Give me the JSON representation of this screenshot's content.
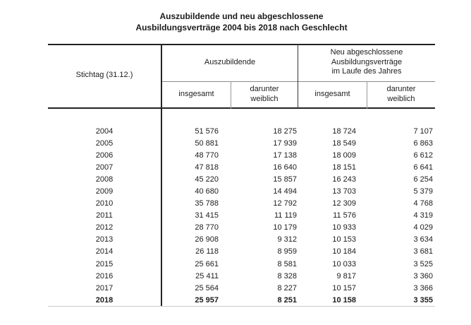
{
  "title": {
    "line1": "Auszubildende und neu abgeschlossene",
    "line2": "Ausbildungsverträge 2004 bis 2018 nach Geschlecht"
  },
  "table": {
    "corner_header": "Stichtag (31.12.)",
    "groups": [
      {
        "label": "Auszubildende",
        "columns": [
          "insgesamt",
          "darunter\nweiblich"
        ]
      },
      {
        "label": "Neu abgeschlossene\nAusbildungsverträge\nim Laufe des Jahres",
        "columns": [
          "insgesamt",
          "darunter\nweiblich"
        ]
      }
    ],
    "rows": [
      {
        "year": "2004",
        "values": [
          "51 576",
          "18 275",
          "18 724",
          "7 107"
        ],
        "bold": false
      },
      {
        "year": "2005",
        "values": [
          "50 881",
          "17 939",
          "18 549",
          "6 863"
        ],
        "bold": false
      },
      {
        "year": "2006",
        "values": [
          "48 770",
          "17 138",
          "18 009",
          "6 612"
        ],
        "bold": false
      },
      {
        "year": "2007",
        "values": [
          "47 818",
          "16 640",
          "18 151",
          "6 641"
        ],
        "bold": false
      },
      {
        "year": "2008",
        "values": [
          "45 220",
          "15 857",
          "16 243",
          "6 254"
        ],
        "bold": false
      },
      {
        "year": "2009",
        "values": [
          "40 680",
          "14 494",
          "13 703",
          "5 379"
        ],
        "bold": false
      },
      {
        "year": "2010",
        "values": [
          "35 788",
          "12 792",
          "12 309",
          "4 768"
        ],
        "bold": false
      },
      {
        "year": "2011",
        "values": [
          "31 415",
          "11 119",
          "11 576",
          "4 319"
        ],
        "bold": false
      },
      {
        "year": "2012",
        "values": [
          "28 770",
          "10 179",
          "10 933",
          "4 029"
        ],
        "bold": false
      },
      {
        "year": "2013",
        "values": [
          "26 908",
          "9 312",
          "10 153",
          "3 634"
        ],
        "bold": false
      },
      {
        "year": "2014",
        "values": [
          "26 118",
          "8 959",
          "10 184",
          "3 681"
        ],
        "bold": false
      },
      {
        "year": "2015",
        "values": [
          "25 661",
          "8 581",
          "10 033",
          "3 525"
        ],
        "bold": false
      },
      {
        "year": "2016",
        "values": [
          "25 411",
          "8 328",
          "9 817",
          "3 360"
        ],
        "bold": false
      },
      {
        "year": "2017",
        "values": [
          "25 564",
          "8 227",
          "10 157",
          "3 366"
        ],
        "bold": false
      },
      {
        "year": "2018",
        "values": [
          "25 957",
          "8 251",
          "10 158",
          "3 355"
        ],
        "bold": true
      }
    ]
  }
}
